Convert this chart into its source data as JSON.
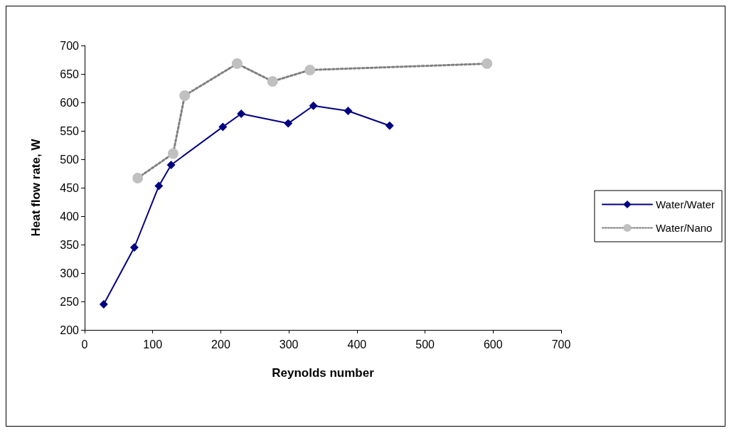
{
  "chart_data": {
    "type": "line",
    "xlabel": "Reynolds number",
    "ylabel": "Heat flow rate, W",
    "xlim": [
      0,
      700
    ],
    "xticks": [
      0,
      100,
      200,
      300,
      400,
      500,
      600,
      700
    ],
    "ylim": [
      200,
      700
    ],
    "yticks": [
      200,
      250,
      300,
      350,
      400,
      450,
      500,
      550,
      600,
      650,
      700
    ],
    "grid": false,
    "legend": "right",
    "series": [
      {
        "name": "Water/Water",
        "color": "#000080",
        "marker": "diamond",
        "line_style": "solid",
        "x": [
          28,
          73,
          109,
          127,
          203,
          230,
          299,
          336,
          387,
          448
        ],
        "values": [
          245,
          345,
          453,
          490,
          557,
          580,
          563,
          594,
          585,
          559
        ]
      },
      {
        "name": "Water/Nano",
        "color": "#c0c0c0",
        "marker": "circle",
        "line_style": "dotted",
        "x": [
          78,
          130,
          147,
          224,
          276,
          331,
          591
        ],
        "values": [
          467,
          510,
          612,
          668,
          637,
          657,
          668
        ]
      }
    ]
  }
}
